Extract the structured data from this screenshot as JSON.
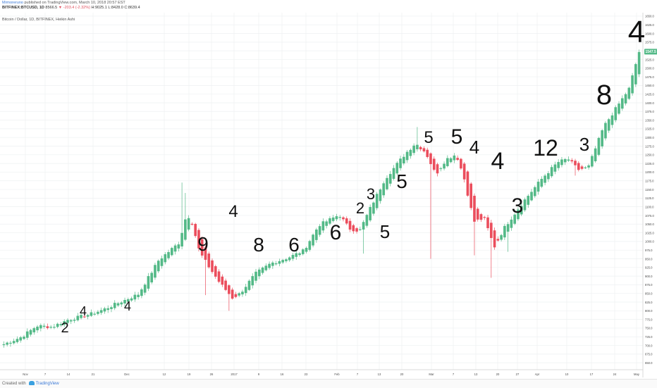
{
  "header": {
    "author": "Mrmoreruno",
    "published_text": "published on TradingView.com, March 10, 2018 20:57 EST",
    "symbol_line": "BITFINEX:BTCUSD, 1D",
    "open_text": "8566.5",
    "change_text": "▼ -203.4 (-2.32%)",
    "high_text": "H:9025.1",
    "low_text": "L:8428.0",
    "close_text": "C:8639.4"
  },
  "chart_title": "Bitcoin / Dollar, 1D, BITFINEX, Heikin Ashi",
  "price_badge": "1547.5",
  "footer": {
    "created_with": "Created with",
    "brand": "TradingView"
  },
  "colors": {
    "up": "#53b987",
    "down": "#eb4d5c",
    "grid": "#eef0f2",
    "axis_text": "#4a4a4a",
    "annotation": "#111111",
    "badge": "#53b987"
  },
  "chart_data": {
    "type": "heikin-ashi candlestick",
    "title": "Bitcoin / Dollar, 1D, BITFINEX, Heikin Ashi",
    "x_axis_ticks": [
      "Nov",
      "7",
      "14",
      "21",
      "Dec",
      "12",
      "19",
      "26",
      "2017",
      "9",
      "16",
      "23",
      "Feb",
      "7",
      "13",
      "20",
      "Mar",
      "7",
      "13",
      "20",
      "27",
      "Apr",
      "10",
      "17",
      "24",
      "May"
    ],
    "y_axis_ticks": [
      650,
      675,
      700,
      725,
      750,
      775,
      800,
      825,
      850,
      875,
      900,
      925,
      950,
      975,
      1000,
      1025,
      1050,
      1075,
      1100,
      1125,
      1150,
      1175,
      1200,
      1225,
      1250,
      1275,
      1300,
      1325,
      1350,
      1375,
      1400,
      1425,
      1450,
      1475,
      1500,
      1525,
      1550,
      1575,
      1600,
      1625,
      1650
    ],
    "y_axis_labels": [
      "650.0",
      "675.0",
      "700.0",
      "725.0",
      "750.0",
      "775.0",
      "800.0",
      "825.0",
      "850.0",
      "875.0",
      "900.0",
      "925.0",
      "950.0",
      "975.0",
      "1000.0",
      "1025.0",
      "1050.0",
      "1075.0",
      "1100.0",
      "1125.0",
      "1150.0",
      "1175.0",
      "1200.0",
      "1225.0",
      "1250.0",
      "1275.0",
      "1300.0",
      "1325.0",
      "1350.0",
      "1375.0",
      "1400.0",
      "1425.0",
      "1450.0",
      "1475.0",
      "1500.0",
      "1525.0",
      "1550.0",
      "1575.0",
      "1600.0",
      "1625.0",
      "1650.0"
    ],
    "ylim": [
      630,
      1660
    ],
    "last_price": 1547.5,
    "candle_count": 190,
    "path": [
      [
        0,
        705,
        700
      ],
      [
        7,
        735,
        700
      ],
      [
        13,
        755,
        760
      ],
      [
        19,
        755,
        750
      ],
      [
        25,
        775,
        770
      ],
      [
        34,
        790,
        790
      ],
      [
        39,
        800,
        810
      ],
      [
        53,
        860,
        820
      ],
      [
        61,
        945,
        950
      ],
      [
        69,
        995,
        1000
      ],
      [
        72,
        1080,
        1080
      ],
      [
        74,
        1060,
        1050
      ],
      [
        77,
        970,
        970
      ],
      [
        81,
        925,
        920
      ],
      [
        85,
        885,
        870
      ],
      [
        90,
        840,
        830
      ],
      [
        93,
        850,
        850
      ],
      [
        99,
        910,
        900
      ],
      [
        105,
        935,
        940
      ],
      [
        112,
        955,
        950
      ],
      [
        118,
        975,
        970
      ],
      [
        124,
        1050,
        1040
      ],
      [
        132,
        1080,
        1070
      ],
      [
        136,
        1040,
        1030
      ],
      [
        140,
        1030,
        1030
      ],
      [
        144,
        1090,
        1100
      ],
      [
        150,
        1180,
        1180
      ],
      [
        158,
        1250,
        1260
      ],
      [
        162,
        1285,
        1280
      ],
      [
        166,
        1260,
        1250
      ],
      [
        170,
        1190,
        1200
      ],
      [
        174,
        1240,
        1230
      ],
      [
        178,
        1250,
        1255
      ],
      [
        181,
        1190,
        1180
      ],
      [
        185,
        1060,
        1050
      ],
      [
        189,
        1070,
        1060
      ],
      [
        193,
        985,
        980
      ],
      [
        197,
        1040,
        1040
      ],
      [
        205,
        1120,
        1120
      ],
      [
        212,
        1185,
        1180
      ],
      [
        218,
        1230,
        1225
      ],
      [
        222,
        1240,
        1235
      ],
      [
        226,
        1210,
        1200
      ],
      [
        230,
        1215,
        1210
      ],
      [
        236,
        1330,
        1330
      ],
      [
        242,
        1395,
        1400
      ],
      [
        246,
        1440,
        1440
      ],
      [
        250,
        1547,
        1547
      ]
    ],
    "spikes": [
      [
        70,
        1170
      ],
      [
        71,
        1140
      ],
      [
        79,
        860
      ],
      [
        80,
        845
      ],
      [
        88,
        800
      ],
      [
        141,
        965
      ],
      [
        163,
        1330
      ],
      [
        168,
        950
      ],
      [
        185,
        960
      ],
      [
        192,
        895
      ],
      [
        199,
        970
      ],
      [
        225,
        1190
      ]
    ],
    "annotations": [
      "2",
      "4",
      "4",
      "9",
      "4",
      "8",
      "6",
      "6",
      "2",
      "3",
      "5",
      "5",
      "5",
      "5",
      "4",
      "4",
      "3",
      "12",
      "3",
      "8",
      "4"
    ]
  }
}
